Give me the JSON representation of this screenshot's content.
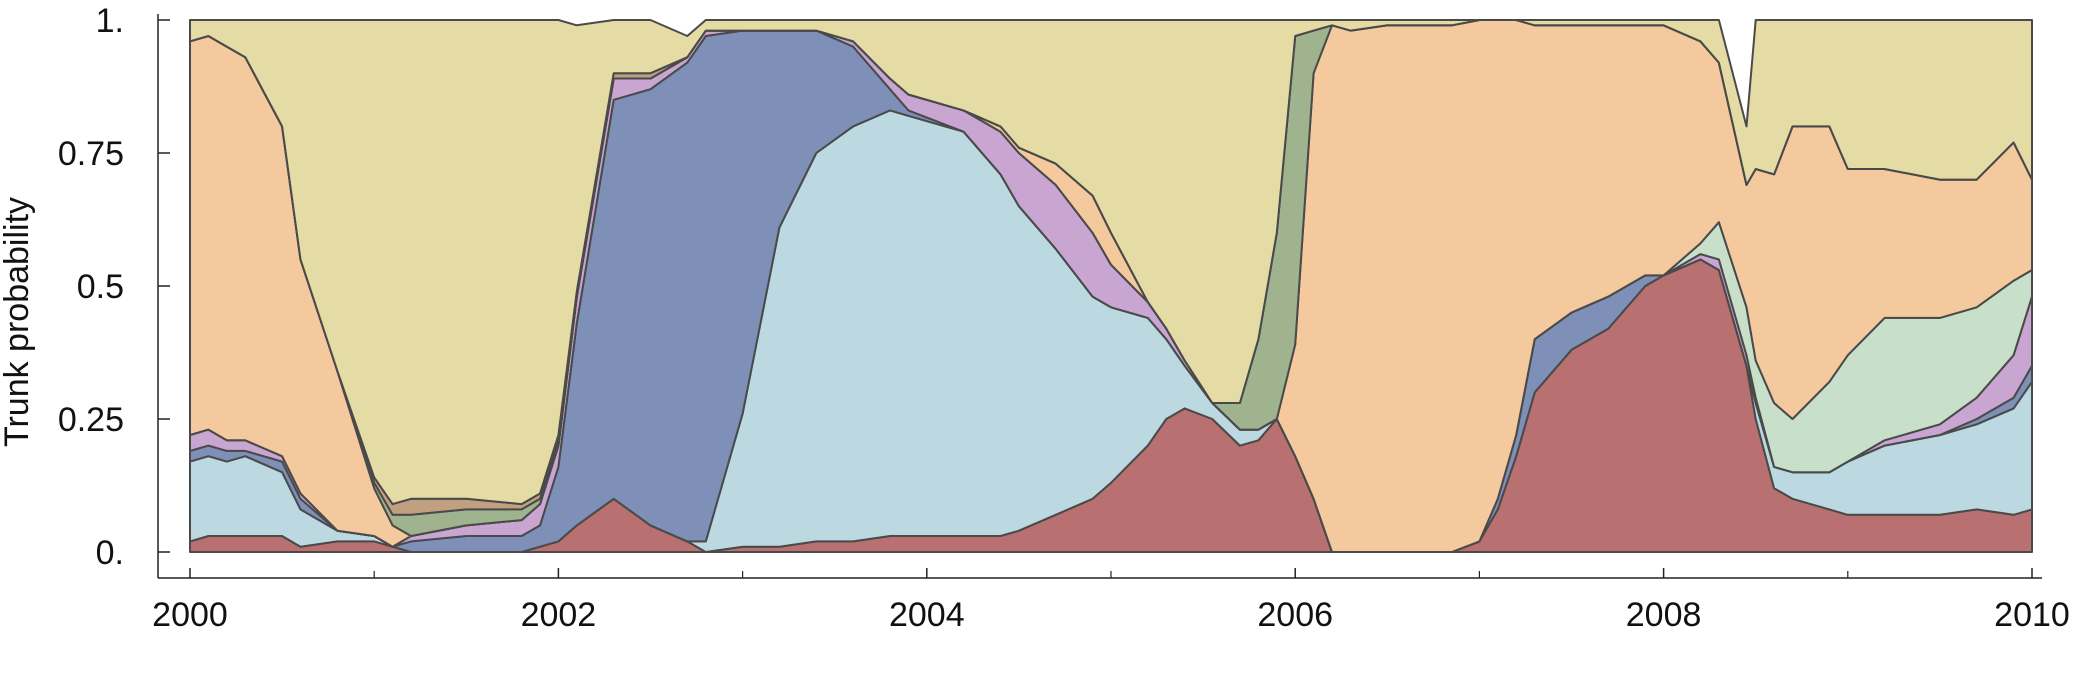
{
  "chart_data": {
    "type": "area",
    "stacked": true,
    "title": "",
    "xlabel": "",
    "ylabel": "Trunk probability",
    "xlim": [
      2000,
      2010
    ],
    "ylim": [
      0,
      1
    ],
    "x_ticks": [
      "2000",
      "2002",
      "2004",
      "2006",
      "2008",
      "2010"
    ],
    "y_ticks": [
      "0.",
      "0.25",
      "0.5",
      "0.75",
      "1."
    ],
    "grid": false,
    "legend": "none",
    "x": [
      2000.0,
      2000.1,
      2000.2,
      2000.3,
      2000.5,
      2000.6,
      2000.8,
      2001.0,
      2001.1,
      2001.2,
      2001.5,
      2001.8,
      2001.9,
      2002.0,
      2002.1,
      2002.3,
      2002.5,
      2002.7,
      2002.8,
      2003.0,
      2003.2,
      2003.4,
      2003.6,
      2003.8,
      2003.9,
      2004.2,
      2004.4,
      2004.5,
      2004.7,
      2004.9,
      2005.0,
      2005.2,
      2005.3,
      2005.4,
      2005.55,
      2005.7,
      2005.8,
      2005.9,
      2006.0,
      2006.1,
      2006.2,
      2006.3,
      2006.5,
      2006.7,
      2006.85,
      2007.0,
      2007.1,
      2007.2,
      2007.3,
      2007.5,
      2007.7,
      2007.9,
      2008.0,
      2008.2,
      2008.3,
      2008.45,
      2008.5,
      2008.6,
      2008.7,
      2008.9,
      2009.0,
      2009.2,
      2009.5,
      2009.7,
      2009.9,
      2010.0
    ],
    "series": [
      {
        "color": "#b97070",
        "values": [
          0.02,
          0.03,
          0.03,
          0.03,
          0.03,
          0.01,
          0.02,
          0.02,
          0.01,
          0.0,
          0.0,
          0.0,
          0.01,
          0.02,
          0.05,
          0.1,
          0.05,
          0.02,
          0.0,
          0.01,
          0.01,
          0.02,
          0.02,
          0.03,
          0.03,
          0.03,
          0.03,
          0.04,
          0.07,
          0.1,
          0.13,
          0.2,
          0.25,
          0.27,
          0.25,
          0.2,
          0.21,
          0.25,
          0.18,
          0.1,
          0.0,
          0.0,
          0.0,
          0.0,
          0.0,
          0.02,
          0.08,
          0.18,
          0.3,
          0.38,
          0.42,
          0.5,
          0.52,
          0.55,
          0.53,
          0.35,
          0.25,
          0.12,
          0.1,
          0.08,
          0.07,
          0.07,
          0.07,
          0.08,
          0.07,
          0.08
        ]
      },
      {
        "color": "#bcd9e2",
        "values": [
          0.15,
          0.15,
          0.14,
          0.15,
          0.12,
          0.07,
          0.02,
          0.01,
          0.0,
          0.0,
          0.0,
          0.0,
          0.0,
          0.0,
          0.0,
          0.0,
          0.0,
          0.0,
          0.02,
          0.25,
          0.6,
          0.73,
          0.78,
          0.8,
          0.79,
          0.76,
          0.68,
          0.61,
          0.5,
          0.38,
          0.33,
          0.24,
          0.15,
          0.08,
          0.03,
          0.03,
          0.02,
          0.0,
          0.0,
          0.0,
          0.0,
          0.0,
          0.0,
          0.0,
          0.0,
          0.0,
          0.0,
          0.0,
          0.0,
          0.0,
          0.0,
          0.0,
          0.0,
          0.0,
          0.0,
          0.0,
          0.03,
          0.04,
          0.05,
          0.07,
          0.1,
          0.13,
          0.15,
          0.16,
          0.2,
          0.24
        ]
      },
      {
        "color": "#7f90b8",
        "values": [
          0.02,
          0.02,
          0.02,
          0.01,
          0.02,
          0.02,
          0.0,
          0.0,
          0.0,
          0.02,
          0.03,
          0.03,
          0.04,
          0.14,
          0.38,
          0.75,
          0.82,
          0.9,
          0.95,
          0.72,
          0.37,
          0.23,
          0.15,
          0.04,
          0.01,
          0.0,
          0.0,
          0.0,
          0.0,
          0.0,
          0.0,
          0.0,
          0.0,
          0.0,
          0.0,
          0.0,
          0.0,
          0.0,
          0.0,
          0.0,
          0.0,
          0.0,
          0.0,
          0.0,
          0.0,
          0.0,
          0.02,
          0.04,
          0.1,
          0.07,
          0.06,
          0.02,
          0.0,
          0.0,
          0.0,
          0.0,
          0.0,
          0.0,
          0.0,
          0.0,
          0.0,
          0.0,
          0.0,
          0.01,
          0.02,
          0.03
        ]
      },
      {
        "color": "#c9a6d2",
        "values": [
          0.03,
          0.03,
          0.02,
          0.02,
          0.01,
          0.01,
          0.0,
          0.0,
          0.0,
          0.01,
          0.02,
          0.03,
          0.04,
          0.04,
          0.05,
          0.04,
          0.02,
          0.01,
          0.01,
          0.0,
          0.0,
          0.0,
          0.01,
          0.02,
          0.03,
          0.04,
          0.08,
          0.1,
          0.12,
          0.12,
          0.08,
          0.03,
          0.02,
          0.01,
          0.0,
          0.0,
          0.0,
          0.0,
          0.0,
          0.0,
          0.0,
          0.0,
          0.0,
          0.0,
          0.0,
          0.0,
          0.0,
          0.0,
          0.0,
          0.0,
          0.0,
          0.0,
          0.0,
          0.01,
          0.02,
          0.02,
          0.01,
          0.0,
          0.0,
          0.0,
          0.0,
          0.01,
          0.02,
          0.04,
          0.08,
          0.13
        ]
      },
      {
        "color": "#c8e0c9",
        "values": [
          0.0,
          0.0,
          0.0,
          0.0,
          0.0,
          0.0,
          0.0,
          0.0,
          0.0,
          0.0,
          0.0,
          0.0,
          0.0,
          0.0,
          0.0,
          0.0,
          0.0,
          0.0,
          0.0,
          0.0,
          0.0,
          0.0,
          0.0,
          0.0,
          0.0,
          0.0,
          0.0,
          0.0,
          0.0,
          0.0,
          0.0,
          0.0,
          0.0,
          0.0,
          0.0,
          0.0,
          0.0,
          0.0,
          0.0,
          0.0,
          0.0,
          0.0,
          0.0,
          0.0,
          0.0,
          0.0,
          0.0,
          0.0,
          0.0,
          0.0,
          0.0,
          0.0,
          0.0,
          0.02,
          0.07,
          0.09,
          0.07,
          0.12,
          0.1,
          0.17,
          0.2,
          0.23,
          0.2,
          0.17,
          0.14,
          0.05
        ]
      },
      {
        "color": "#f3c99d",
        "values": [
          0.74,
          0.74,
          0.74,
          0.72,
          0.62,
          0.44,
          0.3,
          0.09,
          0.04,
          0.0,
          0.0,
          0.0,
          0.0,
          0.0,
          0.0,
          0.0,
          0.0,
          0.0,
          0.0,
          0.0,
          0.0,
          0.0,
          0.0,
          0.0,
          0.0,
          0.0,
          0.01,
          0.01,
          0.04,
          0.07,
          0.06,
          0.0,
          0.0,
          0.0,
          0.0,
          0.0,
          0.0,
          0.0,
          0.21,
          0.8,
          0.99,
          0.98,
          0.99,
          0.99,
          0.99,
          0.98,
          0.9,
          0.78,
          0.59,
          0.54,
          0.51,
          0.47,
          0.47,
          0.38,
          0.3,
          0.23,
          0.36,
          0.43,
          0.55,
          0.48,
          0.35,
          0.28,
          0.26,
          0.24,
          0.26,
          0.17
        ]
      },
      {
        "color": "#9fb38f",
        "values": [
          0.0,
          0.0,
          0.0,
          0.0,
          0.0,
          0.0,
          0.0,
          0.01,
          0.02,
          0.04,
          0.03,
          0.02,
          0.01,
          0.01,
          0.0,
          0.0,
          0.0,
          0.0,
          0.0,
          0.0,
          0.0,
          0.0,
          0.0,
          0.0,
          0.0,
          0.0,
          0.0,
          0.0,
          0.0,
          0.0,
          0.0,
          0.0,
          0.0,
          0.0,
          0.0,
          0.05,
          0.17,
          0.35,
          0.58,
          0.08,
          0.0,
          0.0,
          0.0,
          0.0,
          0.0,
          0.0,
          0.0,
          0.0,
          0.0,
          0.0,
          0.0,
          0.0,
          0.0,
          0.0,
          0.0,
          0.0,
          0.0,
          0.0,
          0.0,
          0.0,
          0.0,
          0.0,
          0.0,
          0.0,
          0.0,
          0.0
        ]
      },
      {
        "color": "#c0a080",
        "values": [
          0.0,
          0.0,
          0.0,
          0.0,
          0.0,
          0.0,
          0.0,
          0.01,
          0.02,
          0.03,
          0.02,
          0.01,
          0.01,
          0.01,
          0.01,
          0.01,
          0.01,
          0.0,
          0.0,
          0.0,
          0.0,
          0.0,
          0.0,
          0.0,
          0.0,
          0.0,
          0.0,
          0.0,
          0.0,
          0.0,
          0.0,
          0.0,
          0.0,
          0.0,
          0.0,
          0.0,
          0.0,
          0.0,
          0.0,
          0.0,
          0.0,
          0.0,
          0.0,
          0.0,
          0.0,
          0.0,
          0.0,
          0.0,
          0.0,
          0.0,
          0.0,
          0.0,
          0.0,
          0.0,
          0.0,
          0.0,
          0.0,
          0.0,
          0.0,
          0.0,
          0.0,
          0.0,
          0.0,
          0.0,
          0.0,
          0.0
        ]
      },
      {
        "color": "#e5dba5",
        "values": [
          0.04,
          0.03,
          0.05,
          0.07,
          0.2,
          0.45,
          0.66,
          0.87,
          0.91,
          0.9,
          0.9,
          0.91,
          0.9,
          0.78,
          0.5,
          0.1,
          0.1,
          0.04,
          0.02,
          0.02,
          0.02,
          0.02,
          0.04,
          0.11,
          0.14,
          0.17,
          0.2,
          0.24,
          0.27,
          0.33,
          0.4,
          0.53,
          0.58,
          0.64,
          0.72,
          0.72,
          0.6,
          0.4,
          0.03,
          0.02,
          0.01,
          0.02,
          0.01,
          0.01,
          0.01,
          0.0,
          0.0,
          0.0,
          0.01,
          0.01,
          0.01,
          0.01,
          0.01,
          0.04,
          0.08,
          0.11,
          0.28,
          0.29,
          0.3,
          0.28,
          0.28,
          0.28,
          0.3,
          0.3,
          0.3,
          0.3
        ]
      }
    ]
  }
}
